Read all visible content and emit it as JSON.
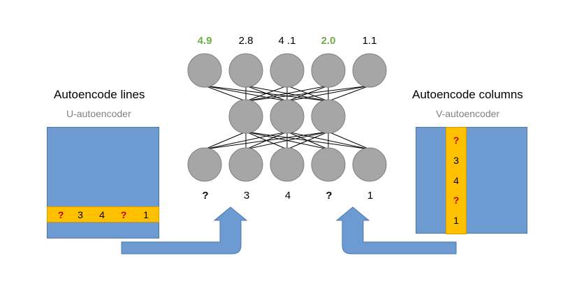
{
  "left_panel": {
    "title": "Autoencode lines",
    "subtitle": "U-autoencoder",
    "row_values": [
      "?",
      "3",
      "4",
      "?",
      "1"
    ]
  },
  "right_panel": {
    "title": "Autoencode columns",
    "subtitle": "V-autoencoder",
    "column_values": [
      "?",
      "3",
      "4",
      "?",
      "1"
    ]
  },
  "network": {
    "outputs": [
      "4.9",
      "2.8",
      "4 .1",
      "2.0",
      "1.1"
    ],
    "inputs": [
      "?",
      "3",
      "4",
      "?",
      "1"
    ]
  },
  "colors": {
    "matrix": "#6d9bd1",
    "strip": "#ffc000",
    "node": "#a6a6a6",
    "arrow": "#6d9bd1",
    "missing": "#c00000",
    "predicted": "#70ad47"
  }
}
